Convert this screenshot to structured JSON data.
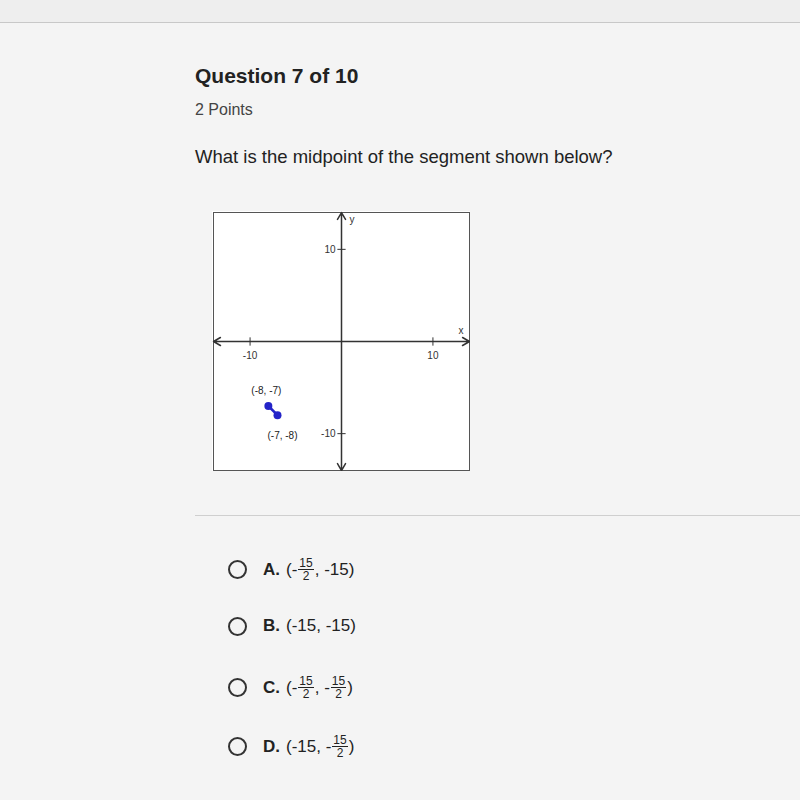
{
  "header": {
    "question_number": "Question 7 of 10",
    "points": "2 Points"
  },
  "question": "What is the midpoint of the segment shown below?",
  "chart_data": {
    "type": "line",
    "x_label": "x",
    "y_label": "y",
    "xlim": [
      -14,
      14
    ],
    "ylim": [
      -14,
      14
    ],
    "xticks": [
      -10,
      10
    ],
    "yticks": [
      -10,
      10
    ],
    "grid": false,
    "marker": "circle",
    "color": "#2424c8",
    "x": [
      -8,
      -7
    ],
    "values": [
      -7,
      -8
    ],
    "value_labels": [
      "(-8, -7)",
      "(-7, -8)"
    ],
    "data_labels": true
  },
  "options": [
    {
      "letter": "A.",
      "pieces": [
        "(-",
        {
          "num": "15",
          "den": "2"
        },
        ", -15)"
      ]
    },
    {
      "letter": "B.",
      "pieces": [
        "(-15, -15)"
      ]
    },
    {
      "letter": "C.",
      "pieces": [
        "(-",
        {
          "num": "15",
          "den": "2"
        },
        ", -",
        {
          "num": "15",
          "den": "2"
        },
        ")"
      ]
    },
    {
      "letter": "D.",
      "pieces": [
        "(-15, -",
        {
          "num": "15",
          "den": "2"
        },
        ")"
      ]
    }
  ]
}
